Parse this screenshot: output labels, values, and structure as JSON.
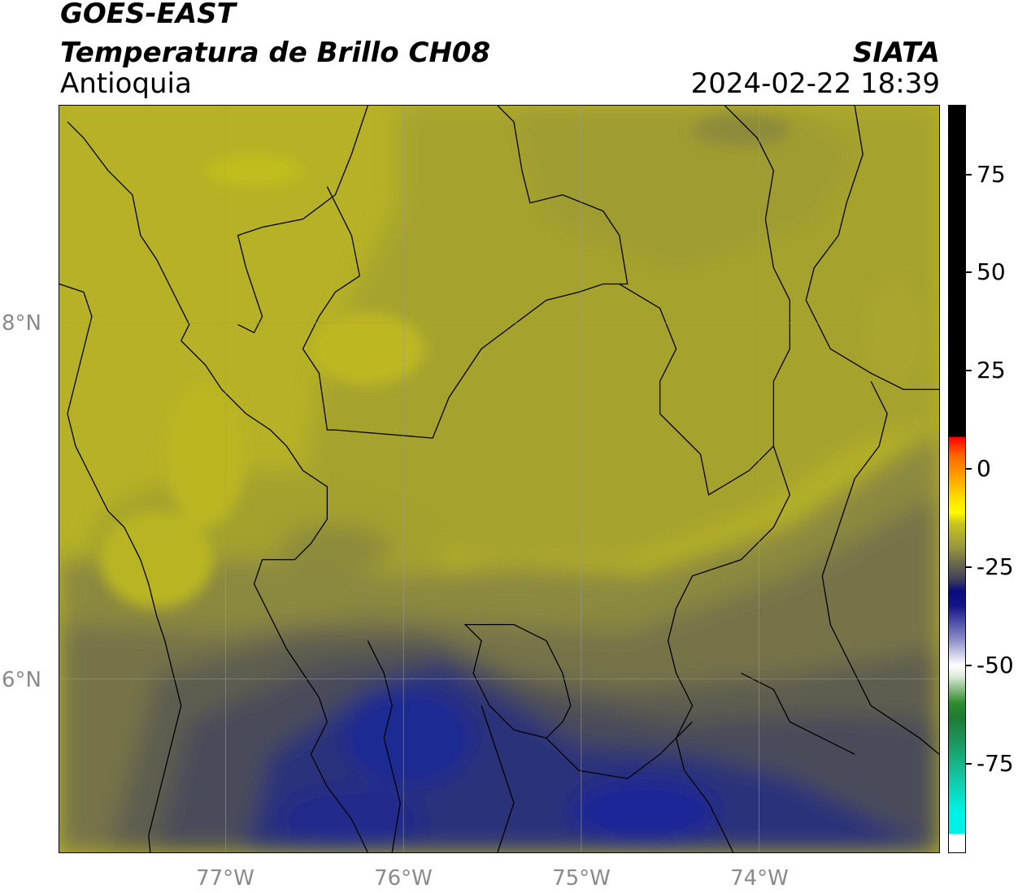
{
  "header": {
    "satellite": "GOES-EAST",
    "product": "Temperatura de Brillo CH08",
    "agency": "SIATA",
    "region": "Antioquia",
    "datetime": "2024-02-22 18:39"
  },
  "map": {
    "latitude_labels": [
      "8°N",
      "6°N"
    ],
    "longitude_labels": [
      "77°W",
      "76°W",
      "75°W",
      "74°W"
    ],
    "field_colors": {
      "warm_yellow": "#b9b422",
      "olive": "#a5a22c",
      "gray_olive": "#7d7a44",
      "dark_slate": "#4c4c57",
      "deep_blue": "#242a78",
      "cold_blue": "#1f2b90"
    }
  },
  "colorbar": {
    "ticks": [
      "75",
      "50",
      "25",
      "0",
      "-25",
      "-50",
      "-75"
    ],
    "colors": {
      "warm": "#000000",
      "red": "#ff0000",
      "yellow": "#fff800",
      "olive": "#9b993c",
      "navy": "#0b0b80",
      "white": "#ffffff",
      "green": "#2e8b2e",
      "cyan": "#00f2e6"
    }
  }
}
